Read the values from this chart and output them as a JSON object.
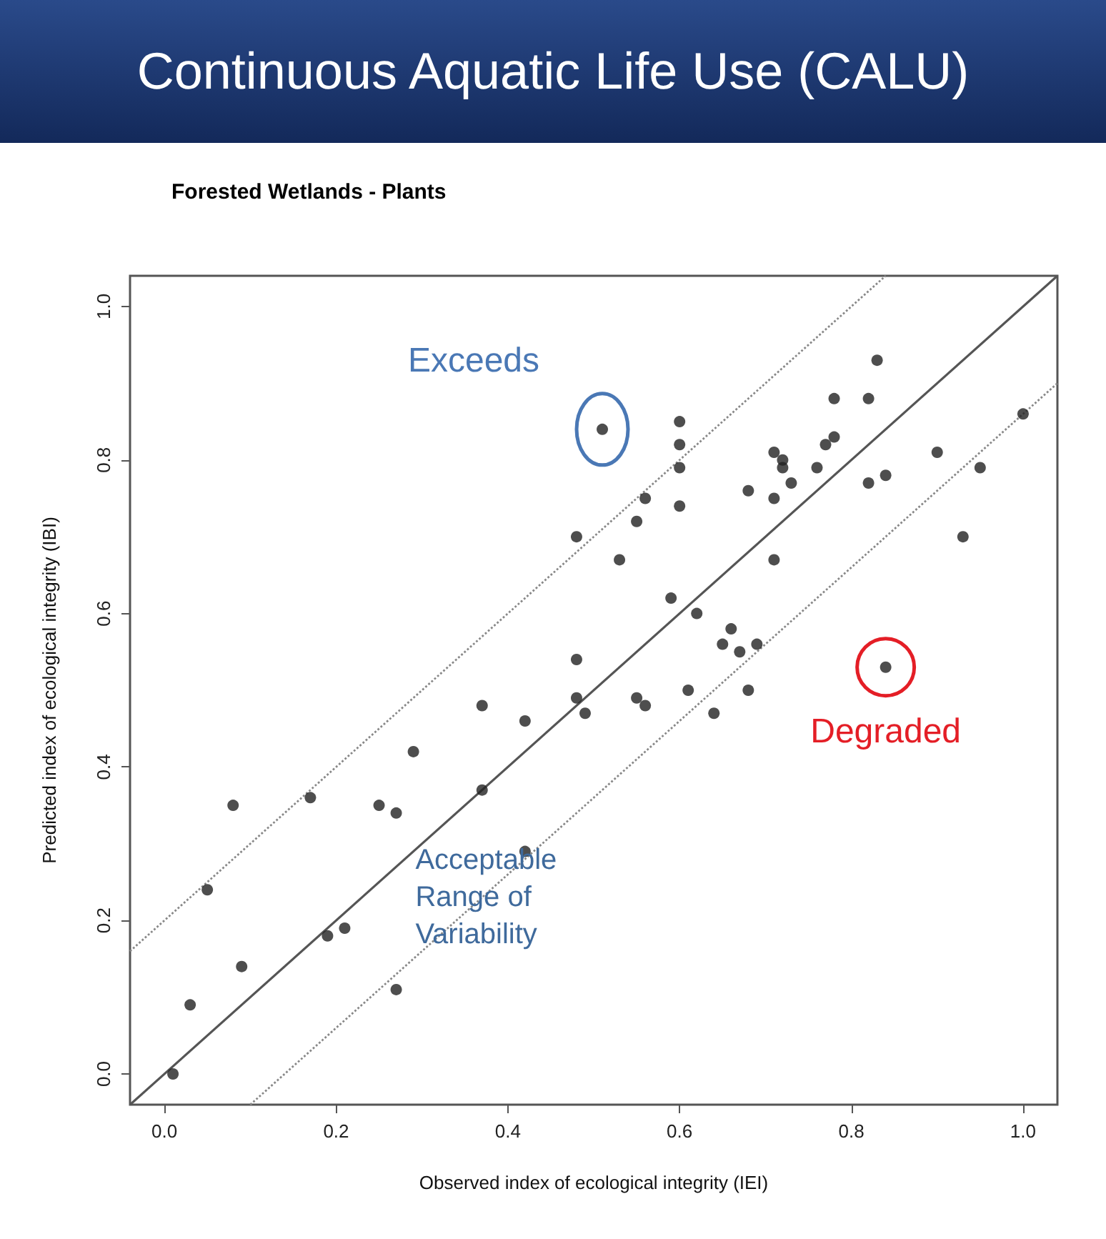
{
  "chart_data": {
    "type": "scatter",
    "title": "Continuous Aquatic Life Use (CALU)",
    "subtitle": "Forested Wetlands - Plants",
    "xlabel": "Observed index of ecological integrity (IEI)",
    "ylabel": "Predicted index of ecological integrity (IBI)",
    "xlim": [
      -0.04,
      1.04
    ],
    "ylim": [
      -0.04,
      1.04
    ],
    "xticks": [
      {
        "value": 0,
        "label": "0.0"
      },
      0.2,
      0.4,
      0.6,
      0.8,
      {
        "value": 1,
        "label": "1.0"
      }
    ],
    "yticks": [
      {
        "value": 0,
        "label": "0.0"
      },
      0.2,
      0.4,
      0.6,
      0.8,
      {
        "value": 1,
        "label": "1.0"
      }
    ],
    "grid": false,
    "annotations": [
      {
        "text": "Exceeds",
        "x": 0.51,
        "y": 0.84
      },
      {
        "text": "Degraded",
        "x": 0.84,
        "y": 0.53
      },
      "Acceptable Range of Variability"
    ],
    "series": [
      {
        "marker": "circle",
        "color": "#222222",
        "x": [
          0.01,
          0.03,
          0.05,
          0.08,
          0.09,
          0.17,
          0.19,
          0.21,
          0.25,
          0.27,
          0.27,
          0.29,
          0.37,
          0.37,
          0.42,
          0.42,
          0.48,
          0.48,
          0.48,
          0.49,
          0.51,
          0.53,
          0.55,
          0.55,
          0.56,
          0.56,
          0.59,
          0.6,
          0.6,
          0.6,
          0.6,
          0.61,
          0.62,
          0.64,
          0.65,
          0.66,
          0.67,
          0.68,
          0.68,
          0.69,
          0.71,
          0.71,
          0.71,
          0.72,
          0.72,
          0.73,
          0.76,
          0.77,
          0.78,
          0.78,
          0.82,
          0.82,
          0.83,
          0.84,
          0.84,
          0.9,
          0.93,
          0.95,
          1.0
        ],
        "values": [
          0.0,
          0.09,
          0.24,
          0.35,
          0.14,
          0.36,
          0.18,
          0.19,
          0.35,
          0.34,
          0.11,
          0.42,
          0.48,
          0.37,
          0.29,
          0.46,
          0.7,
          0.54,
          0.49,
          0.47,
          0.84,
          0.67,
          0.72,
          0.49,
          0.75,
          0.48,
          0.62,
          0.85,
          0.82,
          0.79,
          0.74,
          0.5,
          0.6,
          0.47,
          0.56,
          0.58,
          0.55,
          0.76,
          0.5,
          0.56,
          0.81,
          0.75,
          0.67,
          0.8,
          0.79,
          0.77,
          0.79,
          0.82,
          0.88,
          0.83,
          0.88,
          0.77,
          0.93,
          0.78,
          0.53,
          0.81,
          0.7,
          0.79,
          0.86
        ]
      },
      {
        "type": "line",
        "marker": "none",
        "color": "#555555",
        "line_style": "solid",
        "x": [
          -0.04,
          1.04
        ],
        "values": [
          -0.04,
          1.04
        ]
      },
      {
        "type": "line",
        "marker": "none",
        "color": "#888888",
        "line_style": "dotted",
        "x": [
          -0.04,
          0.84
        ],
        "values": [
          0.16,
          1.04
        ]
      },
      {
        "type": "line",
        "marker": "none",
        "color": "#888888",
        "line_style": "dotted",
        "x": [
          0.1,
          1.04
        ],
        "values": [
          -0.04,
          0.9
        ]
      }
    ]
  }
}
